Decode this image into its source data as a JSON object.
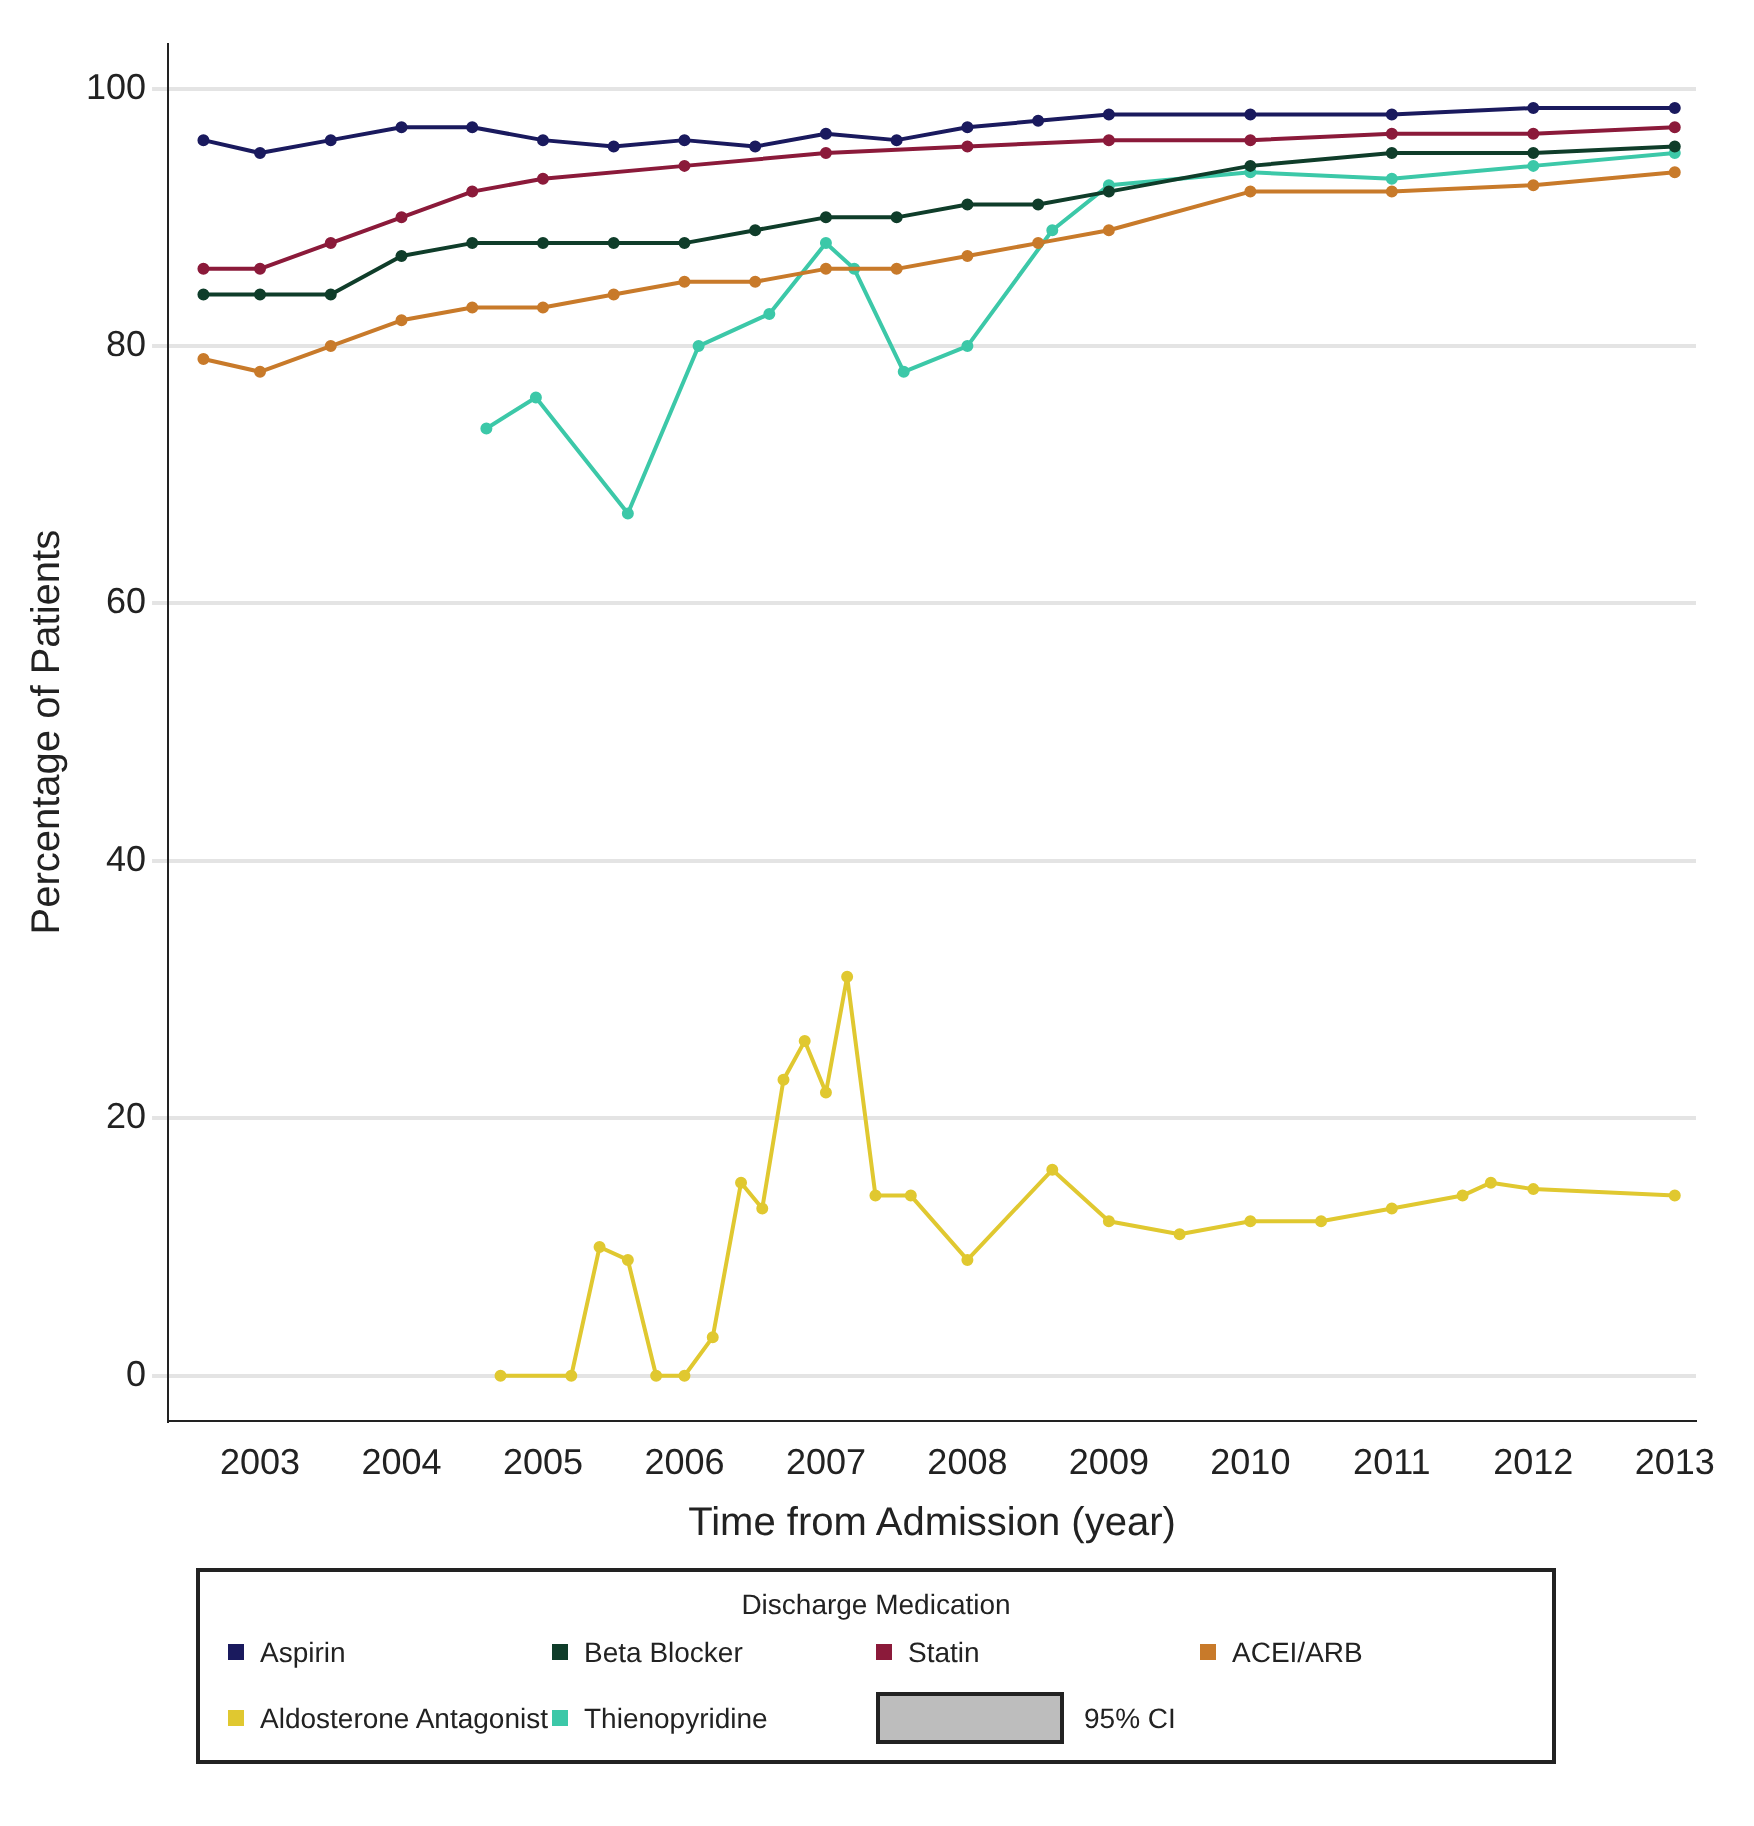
{
  "chart_data": {
    "type": "line",
    "xlabel": "Time from Admission (year)",
    "ylabel": "Percentage of Patients",
    "legend_title": "Discharge Medication",
    "legend": "bottom",
    "grid": "y",
    "marker": "circle",
    "line_style": "solid",
    "xlim": [
      2002.35,
      2013.15
    ],
    "xticks": [
      2003,
      2004,
      2005,
      2006,
      2007,
      2008,
      2009,
      2010,
      2011,
      2012,
      2013
    ],
    "ylim": [
      -3.5,
      103.5
    ],
    "yticks": [
      0,
      20,
      40,
      60,
      80,
      100
    ],
    "series": [
      {
        "name": "Aspirin",
        "color": "#1a1a5e",
        "x": [
          2002.6,
          2003,
          2003.5,
          2004,
          2004.5,
          2005,
          2005.5,
          2006,
          2006.5,
          2007,
          2007.5,
          2008,
          2008.5,
          2009,
          2010,
          2011,
          2012,
          2013
        ],
        "values": [
          96,
          95,
          96,
          97,
          97,
          96,
          95.5,
          96,
          95.5,
          96.5,
          96,
          97,
          97.5,
          98,
          98,
          98,
          98.5,
          98.5
        ]
      },
      {
        "name": "Beta Blocker",
        "color": "#0f3d2a",
        "x": [
          2002.6,
          2003,
          2003.5,
          2004,
          2004.5,
          2005,
          2005.5,
          2006,
          2006.5,
          2007,
          2007.5,
          2008,
          2008.5,
          2009,
          2010,
          2011,
          2012,
          2013
        ],
        "values": [
          84,
          84,
          84,
          87,
          88,
          88,
          88,
          88,
          89,
          90,
          90,
          91,
          91,
          92,
          94,
          95,
          95,
          95.5
        ]
      },
      {
        "name": "Statin",
        "color": "#8b1a3a",
        "x": [
          2002.6,
          2003,
          2003.5,
          2004,
          2004.5,
          2005,
          2006,
          2007,
          2008,
          2009,
          2010,
          2011,
          2012,
          2013
        ],
        "values": [
          86,
          86,
          88,
          90,
          92,
          93,
          94,
          95,
          95.5,
          96,
          96,
          96.5,
          96.5,
          97
        ]
      },
      {
        "name": "ACEI/ARB",
        "color": "#c87a2a",
        "x": [
          2002.6,
          2003,
          2003.5,
          2004,
          2004.5,
          2005,
          2005.5,
          2006,
          2006.5,
          2007,
          2007.5,
          2008,
          2008.5,
          2009,
          2010,
          2011,
          2012,
          2013
        ],
        "values": [
          79,
          78,
          80,
          82,
          83,
          83,
          84,
          85,
          85,
          86,
          86,
          87,
          88,
          89,
          92,
          92,
          92.5,
          93.5
        ]
      },
      {
        "name": "Aldosterone Antagonist",
        "color": "#e0c830",
        "x": [
          2004.7,
          2005.2,
          2005.4,
          2005.6,
          2005.8,
          2006,
          2006.2,
          2006.4,
          2006.55,
          2006.7,
          2006.85,
          2007,
          2007.15,
          2007.35,
          2007.6,
          2008,
          2008.6,
          2009,
          2009.5,
          2010,
          2010.5,
          2011,
          2011.5,
          2011.7,
          2012,
          2013
        ],
        "values": [
          0,
          0,
          10,
          9,
          0,
          0,
          3,
          15,
          13,
          23,
          26,
          22,
          31,
          14,
          14,
          9,
          16,
          12,
          11,
          12,
          12,
          13,
          14,
          15,
          14.5,
          14
        ]
      },
      {
        "name": "Thienopyridine",
        "color": "#3cc8a8",
        "x": [
          2004.6,
          2004.95,
          2005.6,
          2006.1,
          2006.6,
          2007,
          2007.2,
          2007.55,
          2008,
          2008.6,
          2009,
          2010,
          2011,
          2012,
          2013
        ],
        "values": [
          73.6,
          76,
          67,
          80,
          82.5,
          88,
          86,
          78,
          80,
          89,
          92.5,
          93.5,
          93,
          94,
          95
        ]
      }
    ],
    "annotations": [
      "95% CI"
    ]
  }
}
